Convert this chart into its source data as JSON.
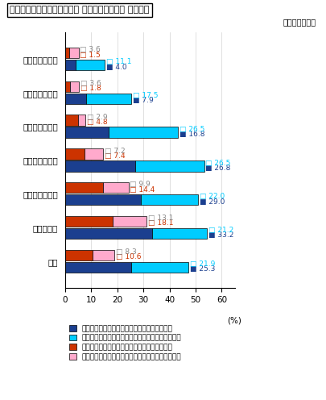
{
  "title": "》メタボリックシンドローム（内臓脂肪症候群）の状況《",
  "title_prefix": "【 ",
  "title_main": "メタボリックシンドローム（ 内臓脂肪症候群） の状況】",
  "subtitle": "（平成２０年）",
  "categories": [
    "２０歳～２９歳",
    "３０歳～３９歳",
    "４０歳～４９歳",
    "５０歳～５９歳",
    "６０歳～６９歳",
    "７０歳以上",
    "総数"
  ],
  "male_strong": [
    4.0,
    7.9,
    16.8,
    26.8,
    29.0,
    33.2,
    25.3
  ],
  "male_pre": [
    11.1,
    17.5,
    26.5,
    26.5,
    22.0,
    21.2,
    21.9
  ],
  "female_strong": [
    1.5,
    1.8,
    4.8,
    7.4,
    14.4,
    18.1,
    10.6
  ],
  "female_pre": [
    3.6,
    3.6,
    2.9,
    7.2,
    9.9,
    13.1,
    8.3
  ],
  "color_male_strong": "#1b3f8f",
  "color_male_pre": "#00ccff",
  "color_female_strong": "#cc3300",
  "color_female_pre": "#ffaacc",
  "legend_labels": [
    "メタボリックシンドロームが強く疲われる男性",
    "メタボリックシンドローム予備群と考えられる男性",
    "メタボリックシンドロームが強く疲われる女性",
    "メタボリックシンドローム予備群と考えられる女性"
  ],
  "xlim": [
    0,
    65
  ],
  "xticks": [
    0,
    10,
    20,
    30,
    40,
    50,
    60
  ],
  "bar_height": 0.32,
  "background_color": "#ffffff"
}
